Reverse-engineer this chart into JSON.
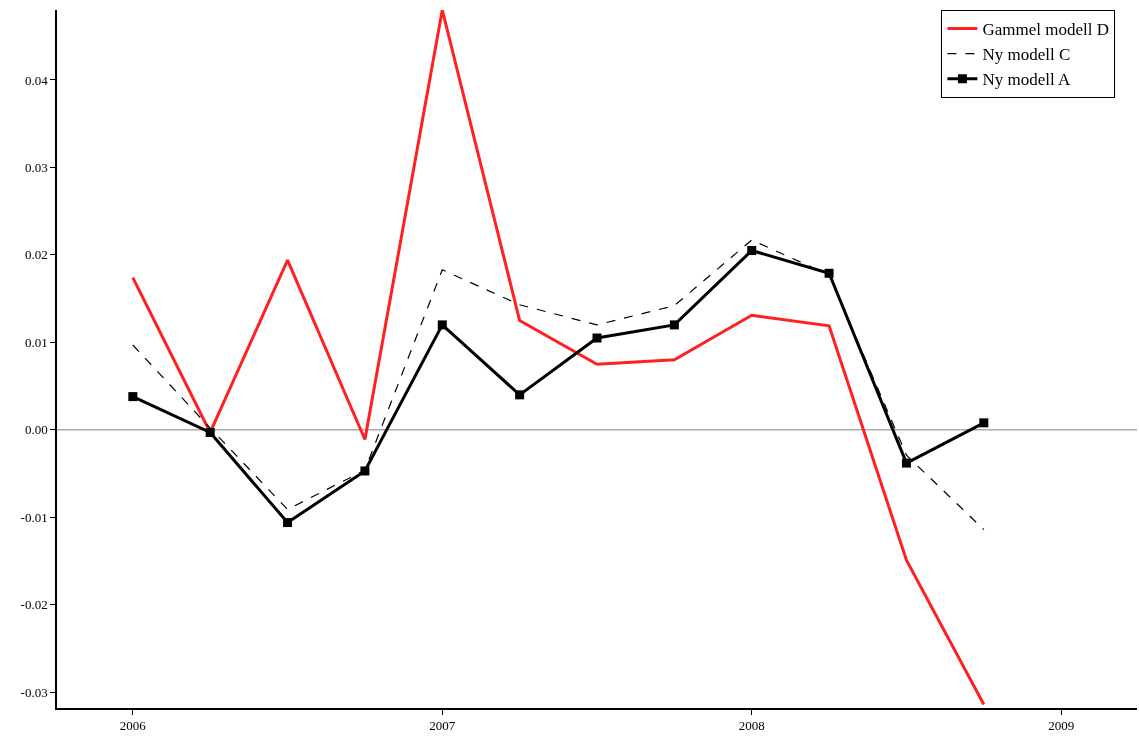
{
  "chart_data": {
    "type": "line",
    "x": [
      2006,
      2006.25,
      2006.5,
      2006.75,
      2007,
      2007.25,
      2007.5,
      2007.75,
      2008,
      2008.25,
      2008.5,
      2008.75
    ],
    "series": [
      {
        "name": "Gammel modell D",
        "color": "#ff2020",
        "line_style": "solid",
        "marker": "none",
        "values": [
          0.0174,
          -0.0003,
          0.0194,
          -0.0011,
          0.048,
          0.0125,
          0.0075,
          0.008,
          0.0131,
          0.0119,
          -0.0149,
          -0.0314
        ]
      },
      {
        "name": "Ny modell C",
        "color": "#000000",
        "line_style": "dashed",
        "marker": "none",
        "values": [
          0.0097,
          0.0002,
          -0.0091,
          -0.0046,
          0.0183,
          0.0143,
          0.012,
          0.0142,
          0.0217,
          0.0177,
          -0.0029,
          -0.0114
        ]
      },
      {
        "name": "Ny modell A",
        "color": "#000000",
        "line_style": "solid",
        "marker": "square",
        "values": [
          0.0038,
          -0.0003,
          -0.0106,
          -0.0047,
          0.012,
          0.004,
          0.0105,
          0.012,
          0.0205,
          0.0179,
          -0.0038,
          0.0008
        ]
      }
    ],
    "xlim": [
      2005.755,
      2009.245
    ],
    "xticks": [
      2006,
      2007,
      2008,
      2009
    ],
    "ylim": [
      -0.0318,
      0.048
    ],
    "yticks": [
      {
        "value": -0.03,
        "label": "-0.03"
      },
      {
        "value": -0.02,
        "label": "-0.02"
      },
      {
        "value": -0.01,
        "label": "-0.01"
      },
      {
        "value": 0,
        "label": "0.00"
      },
      {
        "value": 0.01,
        "label": "0.01"
      },
      {
        "value": 0.02,
        "label": "0.02"
      },
      {
        "value": 0.03,
        "label": "0.03"
      },
      {
        "value": 0.04,
        "label": "0.04"
      }
    ],
    "ref_lines": [
      {
        "axis": "y",
        "value": 0,
        "color": "#808080"
      }
    ],
    "grid": false,
    "legend": "top right"
  }
}
